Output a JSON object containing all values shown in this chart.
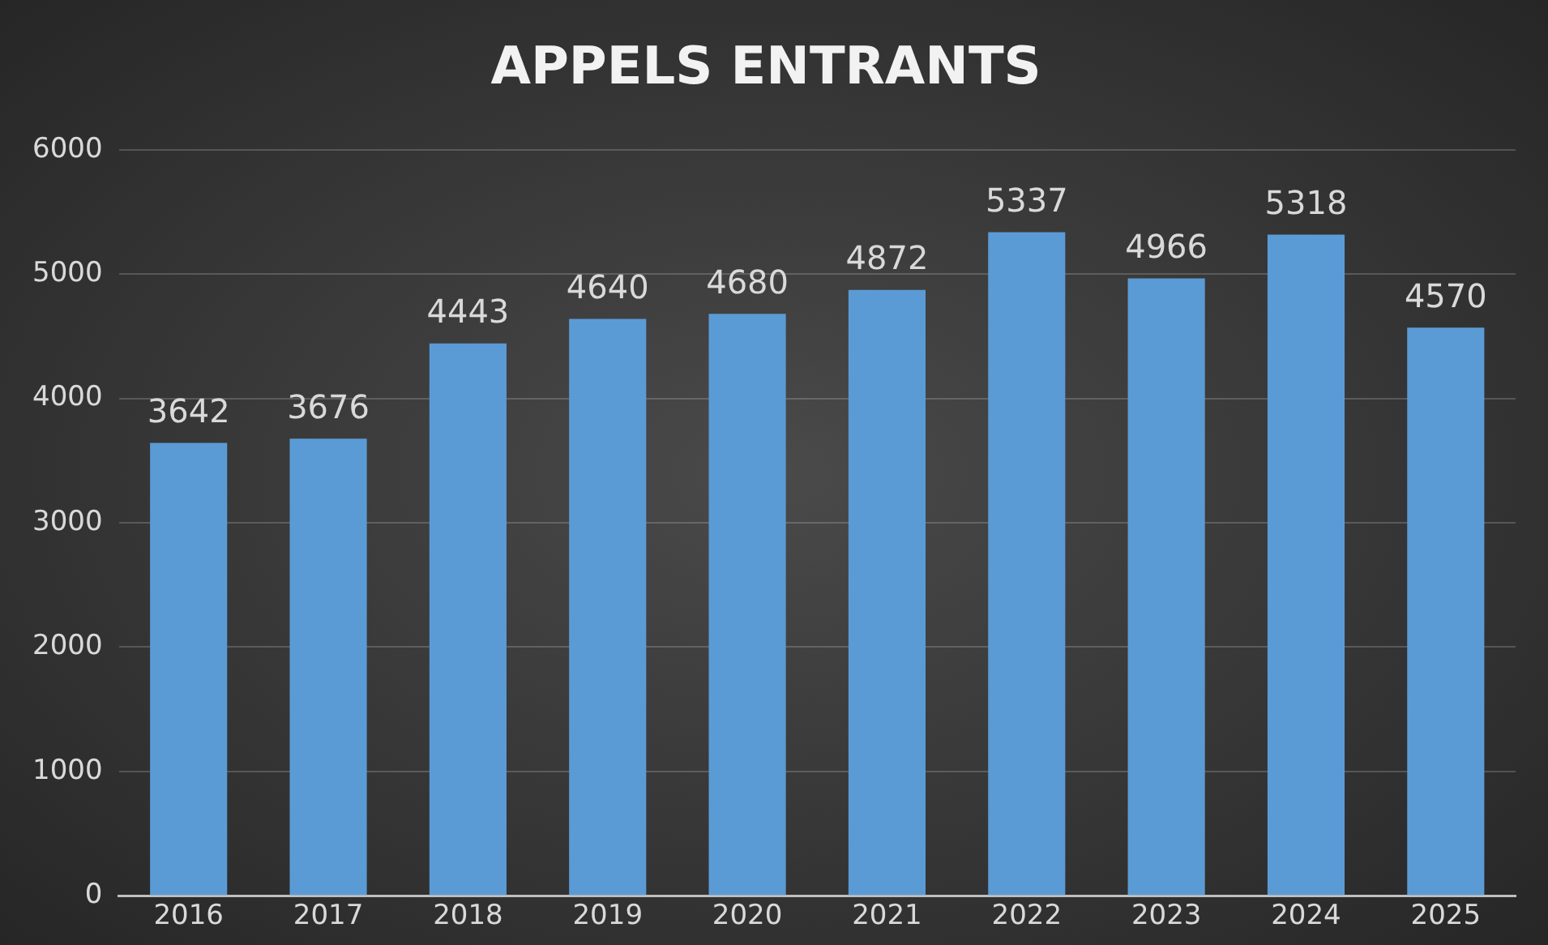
{
  "chart_data": {
    "type": "bar",
    "title": "APPELS ENTRANTS",
    "categories": [
      "2016",
      "2017",
      "2018",
      "2019",
      "2020",
      "2021",
      "2022",
      "2023",
      "2024",
      "2025"
    ],
    "values": [
      3642,
      3676,
      4443,
      4640,
      4680,
      4872,
      5337,
      4966,
      5318,
      4570
    ],
    "color": "#5b9bd5",
    "ylim": [
      0,
      6000
    ],
    "yticks": [
      0,
      1000,
      2000,
      3000,
      4000,
      5000,
      6000
    ],
    "grid": "y",
    "data_labels": true
  }
}
